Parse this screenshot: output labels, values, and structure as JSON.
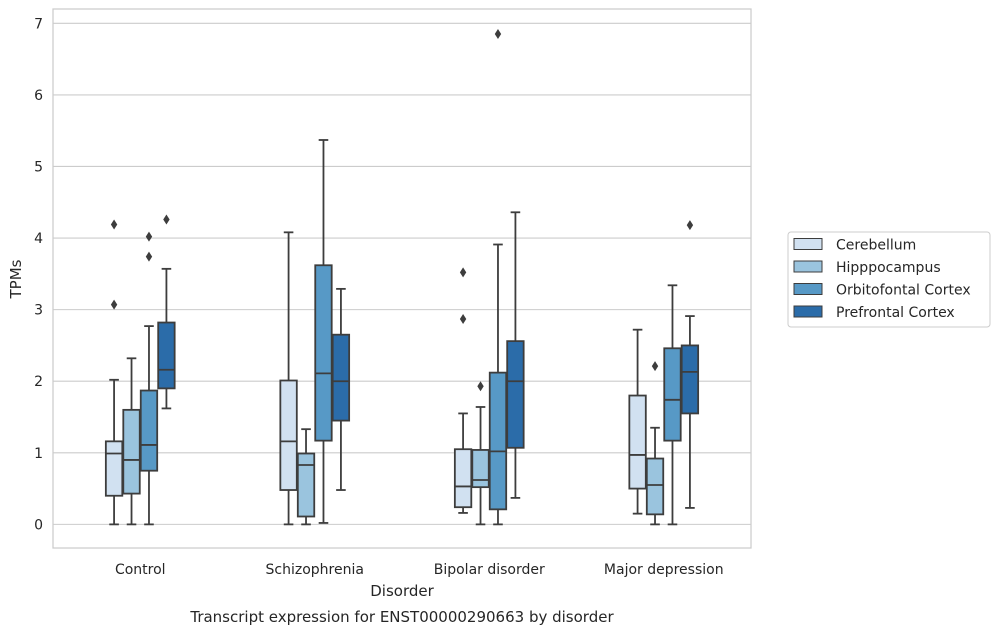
{
  "chart_data": {
    "type": "boxplot",
    "title": "Transcript expression for ENST00000290663 by disorder",
    "xlabel": "Disorder",
    "ylabel": "TPMs",
    "ylim": [
      -0.33,
      7.2
    ],
    "yticks": [
      0,
      1,
      2,
      3,
      4,
      5,
      6,
      7
    ],
    "grid": "horizontal",
    "legend_position": "right",
    "categories": [
      "Control",
      "Schizophrenia",
      "Bipolar disorder",
      "Major depression"
    ],
    "series": [
      {
        "name": "Cerebellum",
        "color": "#d1e1f1",
        "boxes": [
          {
            "whisker_low": 0.0,
            "q1": 0.4,
            "median": 0.99,
            "q3": 1.16,
            "whisker_high": 2.02,
            "outliers": [
              3.07,
              4.19
            ]
          },
          {
            "whisker_low": 0.0,
            "q1": 0.48,
            "median": 1.16,
            "q3": 2.01,
            "whisker_high": 4.08,
            "outliers": []
          },
          {
            "whisker_low": 0.16,
            "q1": 0.24,
            "median": 0.53,
            "q3": 1.05,
            "whisker_high": 1.55,
            "outliers": [
              2.87,
              3.52
            ]
          },
          {
            "whisker_low": 0.15,
            "q1": 0.5,
            "median": 0.97,
            "q3": 1.8,
            "whisker_high": 2.72,
            "outliers": []
          }
        ]
      },
      {
        "name": "Hipppocampus",
        "color": "#9ac4de",
        "boxes": [
          {
            "whisker_low": 0.0,
            "q1": 0.43,
            "median": 0.9,
            "q3": 1.6,
            "whisker_high": 2.32,
            "outliers": []
          },
          {
            "whisker_low": 0.0,
            "q1": 0.11,
            "median": 0.83,
            "q3": 0.99,
            "whisker_high": 1.33,
            "outliers": []
          },
          {
            "whisker_low": 0.0,
            "q1": 0.52,
            "median": 0.62,
            "q3": 1.04,
            "whisker_high": 1.64,
            "outliers": [
              1.93
            ]
          },
          {
            "whisker_low": 0.0,
            "q1": 0.14,
            "median": 0.55,
            "q3": 0.92,
            "whisker_high": 1.35,
            "outliers": [
              2.21
            ]
          }
        ]
      },
      {
        "name": "Orbitofontal Cortex",
        "color": "#5799c6",
        "boxes": [
          {
            "whisker_low": 0.0,
            "q1": 0.75,
            "median": 1.11,
            "q3": 1.87,
            "whisker_high": 2.77,
            "outliers": [
              3.74,
              4.02
            ]
          },
          {
            "whisker_low": 0.02,
            "q1": 1.17,
            "median": 2.11,
            "q3": 3.62,
            "whisker_high": 5.37,
            "outliers": []
          },
          {
            "whisker_low": 0.0,
            "q1": 0.21,
            "median": 1.02,
            "q3": 2.12,
            "whisker_high": 3.91,
            "outliers": [
              6.85
            ]
          },
          {
            "whisker_low": 0.0,
            "q1": 1.17,
            "median": 1.74,
            "q3": 2.46,
            "whisker_high": 3.34,
            "outliers": []
          }
        ]
      },
      {
        "name": "Prefrontal Cortex",
        "color": "#2b6ca9",
        "boxes": [
          {
            "whisker_low": 1.62,
            "q1": 1.9,
            "median": 2.16,
            "q3": 2.82,
            "whisker_high": 3.57,
            "outliers": [
              4.26
            ]
          },
          {
            "whisker_low": 0.48,
            "q1": 1.45,
            "median": 2.0,
            "q3": 2.65,
            "whisker_high": 3.29,
            "outliers": []
          },
          {
            "whisker_low": 0.37,
            "q1": 1.07,
            "median": 2.0,
            "q3": 2.56,
            "whisker_high": 4.36,
            "outliers": []
          },
          {
            "whisker_low": 0.23,
            "q1": 1.55,
            "median": 2.13,
            "q3": 2.5,
            "whisker_high": 2.91,
            "outliers": [
              4.18
            ]
          }
        ]
      }
    ]
  }
}
